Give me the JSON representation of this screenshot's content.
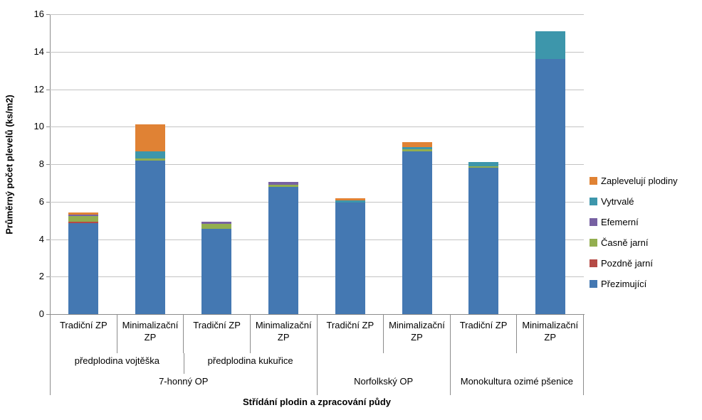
{
  "chart_data": {
    "type": "bar",
    "stacked": true,
    "title": "",
    "xlabel": "Střídání plodin a zpracování půdy",
    "ylabel": "Průměrný počet plevelů (ks/m2)",
    "ylim": [
      0,
      16
    ],
    "ytick_step": 2,
    "grid": true,
    "legend_position": "right",
    "axis_color": "#8c8c8c",
    "gridline_color": "#c3c3c3",
    "categories": [
      "Tradiční ZP",
      "Minimalizační ZP",
      "Tradiční ZP",
      "Minimalizační ZP",
      "Tradiční ZP",
      "Minimalizační ZP",
      "Tradiční ZP",
      "Minimalizační ZP"
    ],
    "category_groups": [
      {
        "label": "7-honný OP",
        "span": 4,
        "subgroups": [
          {
            "label": "předplodina vojtěška",
            "span": 2
          },
          {
            "label": "předplodina kukuřice",
            "span": 2
          }
        ]
      },
      {
        "label": "Norfolkský OP",
        "span": 2,
        "subgroups": []
      },
      {
        "label": "Monokultura ozimé pšenice",
        "span": 2,
        "subgroups": []
      }
    ],
    "series": [
      {
        "name": "Přezimující",
        "color": "#4478b2",
        "values": [
          4.85,
          8.2,
          4.55,
          6.8,
          5.95,
          8.7,
          7.8,
          13.6
        ]
      },
      {
        "name": "Pozdně jarní",
        "color": "#b54a45",
        "values": [
          0.08,
          0.0,
          0.0,
          0.0,
          0.0,
          0.0,
          0.0,
          0.0
        ]
      },
      {
        "name": "Časně jarní",
        "color": "#93ae4f",
        "values": [
          0.3,
          0.12,
          0.27,
          0.11,
          0.0,
          0.08,
          0.08,
          0.0
        ]
      },
      {
        "name": "Efemerní",
        "color": "#7761a2",
        "values": [
          0.08,
          0.0,
          0.11,
          0.15,
          0.0,
          0.0,
          0.0,
          0.0
        ]
      },
      {
        "name": "Vytrvalé",
        "color": "#3d96ab",
        "values": [
          0.0,
          0.35,
          0.0,
          0.0,
          0.12,
          0.12,
          0.23,
          1.5
        ]
      },
      {
        "name": "Zaplevelují plodiny",
        "color": "#e08234",
        "values": [
          0.11,
          1.45,
          0.0,
          0.0,
          0.11,
          0.27,
          0.0,
          0.0
        ]
      }
    ],
    "legend_order_top_to_bottom": [
      "Zaplevelují plodiny",
      "Vytrvalé",
      "Efemerní",
      "Časně jarní",
      "Pozdně jarní",
      "Přezimující"
    ],
    "bar_totals": [
      5.42,
      10.12,
      4.93,
      7.06,
      6.18,
      9.17,
      8.11,
      15.1
    ]
  }
}
